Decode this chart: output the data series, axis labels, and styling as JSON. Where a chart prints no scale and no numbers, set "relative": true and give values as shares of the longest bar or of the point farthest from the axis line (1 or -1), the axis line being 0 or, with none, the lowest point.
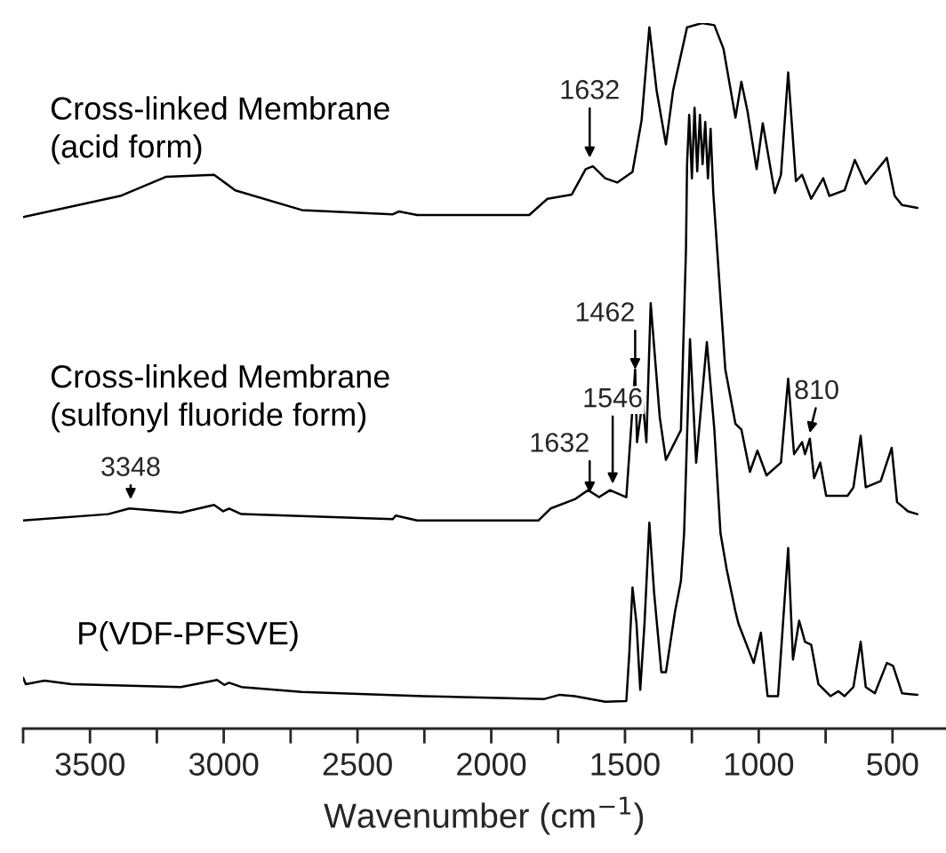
{
  "chart_data": {
    "type": "line",
    "relative": true,
    "xlabel": "Wavenumber (cm$^{−1}$)",
    "xlim": [
      3750,
      300
    ],
    "xticks": [
      {
        "value": 3750,
        "label": null
      },
      3500,
      {
        "value": 3250,
        "label": null
      },
      3000,
      {
        "value": 2750,
        "label": null
      },
      2500,
      {
        "value": 2250,
        "label": null
      },
      2000,
      {
        "value": 1750,
        "label": null
      },
      1500,
      {
        "value": 1250,
        "label": null
      },
      1000,
      {
        "value": 750,
        "label": null
      },
      500
    ],
    "grid": false,
    "legend": false,
    "marker": "none",
    "line_style": "solid",
    "series": [
      {
        "name": "Cross-linked Membrane\n(acid form)",
        "color": "#000000",
        "x": [
          3750,
          3387,
          3217,
          3036,
          2957,
          2708,
          2368,
          2345,
          2277,
          1858,
          1790,
          1699,
          1647,
          1620,
          1574,
          1529,
          1472,
          1438,
          1409,
          1382,
          1347,
          1320,
          1268,
          1212,
          1166,
          1132,
          1087,
          1065,
          1042,
          1008,
          985,
          940,
          917,
          890,
          861,
          838,
          804,
          759,
          736,
          679,
          641,
          600,
          521,
          492,
          464,
          407
        ],
        "values": [
          0.725,
          0.755,
          0.782,
          0.785,
          0.763,
          0.735,
          0.729,
          0.733,
          0.728,
          0.728,
          0.751,
          0.757,
          0.793,
          0.797,
          0.78,
          0.774,
          0.789,
          0.862,
          0.994,
          0.905,
          0.828,
          0.905,
          0.994,
          1.0,
          0.997,
          0.964,
          0.866,
          0.917,
          0.875,
          0.793,
          0.858,
          0.759,
          0.785,
          0.93,
          0.776,
          0.785,
          0.751,
          0.78,
          0.755,
          0.763,
          0.806,
          0.772,
          0.809,
          0.755,
          0.742,
          0.738
        ]
      },
      {
        "name": "Cross-linked Membrane\n(sulfonyl fluoride form)",
        "color": "#000000",
        "x": [
          3750,
          3432,
          3353,
          3161,
          3036,
          3002,
          2980,
          2934,
          2368,
          2357,
          2277,
          1824,
          1778,
          1688,
          1638,
          1597,
          1556,
          1495,
          1462,
          1455,
          1434,
          1420,
          1404,
          1370,
          1347,
          1291,
          1272,
          1268,
          1260,
          1250,
          1240,
          1230,
          1220,
          1210,
          1200,
          1190,
          1180,
          1170,
          1125,
          1087,
          1065,
          1033,
          1005,
          971,
          917,
          890,
          868,
          838,
          827,
          809,
          793,
          770,
          748,
          668,
          646,
          619,
          600,
          544,
          503,
          483,
          442,
          407
        ],
        "values": [
          0.295,
          0.304,
          0.312,
          0.306,
          0.317,
          0.308,
          0.312,
          0.304,
          0.297,
          0.302,
          0.295,
          0.295,
          0.312,
          0.325,
          0.338,
          0.328,
          0.338,
          0.328,
          0.509,
          0.406,
          0.466,
          0.406,
          0.603,
          0.441,
          0.381,
          0.423,
          0.68,
          0.8,
          0.87,
          0.78,
          0.88,
          0.79,
          0.87,
          0.8,
          0.86,
          0.78,
          0.85,
          0.76,
          0.509,
          0.432,
          0.424,
          0.364,
          0.394,
          0.359,
          0.377,
          0.496,
          0.389,
          0.406,
          0.389,
          0.411,
          0.355,
          0.377,
          0.33,
          0.33,
          0.342,
          0.415,
          0.342,
          0.351,
          0.398,
          0.321,
          0.308,
          0.304
        ]
      },
      {
        "name": "P(VDF-PFSVE)",
        "color": "#000000",
        "x": [
          3750,
          3740,
          3670,
          3569,
          3161,
          3025,
          2998,
          2980,
          2934,
          2708,
          2254,
          1801,
          1744,
          1688,
          1574,
          1495,
          1484,
          1472,
          1457,
          1443,
          1427,
          1409,
          1391,
          1364,
          1347,
          1313,
          1291,
          1279,
          1257,
          1234,
          1194,
          1166,
          1143,
          1120,
          1087,
          1076,
          1019,
          992,
          967,
          928,
          890,
          872,
          849,
          827,
          804,
          777,
          732,
          702,
          679,
          646,
          619,
          600,
          566,
          521,
          498,
          464,
          407
        ],
        "values": [
          0.072,
          0.063,
          0.068,
          0.063,
          0.059,
          0.069,
          0.062,
          0.065,
          0.059,
          0.052,
          0.046,
          0.042,
          0.048,
          0.046,
          0.038,
          0.039,
          0.106,
          0.2,
          0.149,
          0.055,
          0.149,
          0.292,
          0.192,
          0.08,
          0.08,
          0.166,
          0.209,
          0.277,
          0.552,
          0.377,
          0.548,
          0.424,
          0.277,
          0.226,
          0.166,
          0.149,
          0.093,
          0.136,
          0.046,
          0.046,
          0.256,
          0.098,
          0.153,
          0.123,
          0.119,
          0.063,
          0.046,
          0.053,
          0.046,
          0.059,
          0.123,
          0.059,
          0.05,
          0.093,
          0.089,
          0.05,
          0.048
        ]
      }
    ],
    "annotations": [
      {
        "text": "1632",
        "x": 1632,
        "y": 0.809
      },
      {
        "text": "3348",
        "x": 3348,
        "y": 0.325
      },
      {
        "text": "1632",
        "x": 1632,
        "y": 0.334
      },
      {
        "text": "1546",
        "x": 1546,
        "y": 0.347
      },
      {
        "text": "1462",
        "x": 1462,
        "y": 0.509
      },
      {
        "text": "810",
        "x": 810,
        "y": 0.419
      }
    ]
  }
}
